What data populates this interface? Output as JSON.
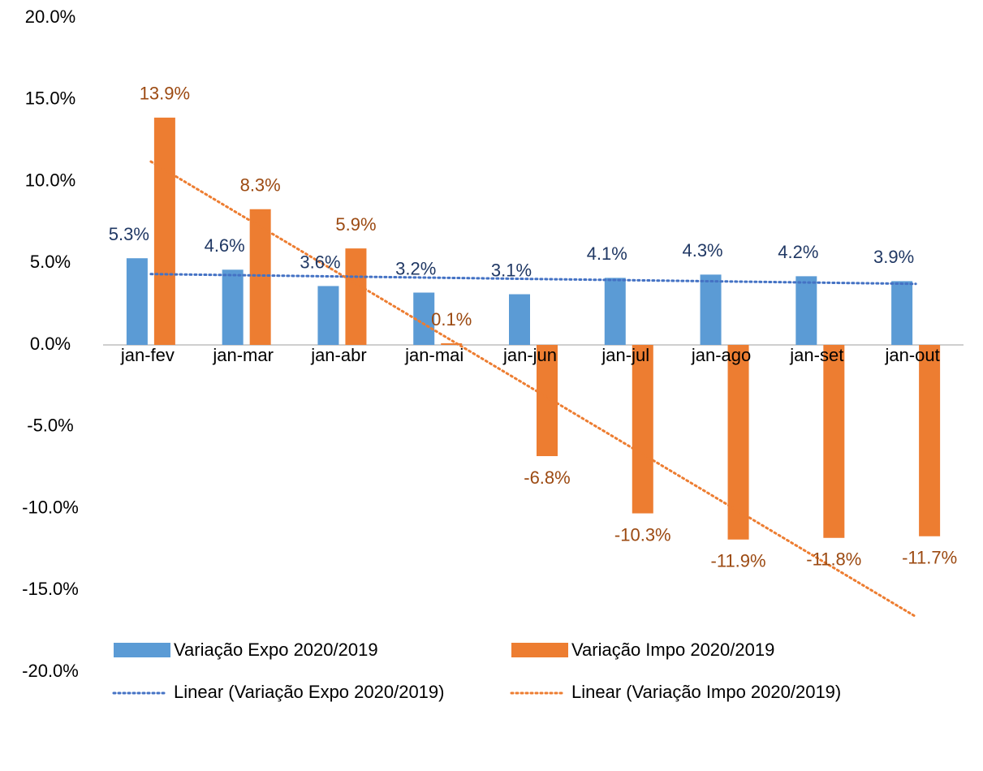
{
  "chart_data": {
    "type": "bar",
    "categories": [
      "jan-fev",
      "jan-mar",
      "jan-abr",
      "jan-mai",
      "jan-jun",
      "jan-jul",
      "jan-ago",
      "jan-set",
      "jan-out"
    ],
    "series": [
      {
        "name": "Variação Expo 2020/2019",
        "color": "#5b9bd5",
        "label_color": "#203864",
        "values": [
          5.3,
          4.6,
          3.6,
          3.2,
          3.1,
          4.1,
          4.3,
          4.2,
          3.9
        ],
        "value_labels": [
          "5.3%",
          "4.6%",
          "3.6%",
          "3.2%",
          "3.1%",
          "4.1%",
          "4.3%",
          "4.2%",
          "3.9%"
        ],
        "trendline": {
          "name": "Linear (Variação Expo 2020/2019)",
          "color": "#4472c4"
        }
      },
      {
        "name": "Variação Impo 2020/2019",
        "color": "#ed7d31",
        "label_color": "#9c4a12",
        "values": [
          13.9,
          8.3,
          5.9,
          0.1,
          -6.8,
          -10.3,
          -11.9,
          -11.8,
          -11.7
        ],
        "value_labels": [
          "13.9%",
          "8.3%",
          "5.9%",
          "0.1%",
          "-6.8%",
          "-10.3%",
          "-11.9%",
          "-11.8%",
          "-11.7%"
        ],
        "trendline": {
          "name": "Linear (Variação Impo 2020/2019)",
          "color": "#ed7d31"
        }
      }
    ],
    "ylim": [
      -20,
      20
    ],
    "yticks": [
      {
        "value": -20,
        "label": "-20.0%"
      },
      {
        "value": -15,
        "label": "-15.0%"
      },
      {
        "value": -10,
        "label": "-10.0%"
      },
      {
        "value": -5,
        "label": "-5.0%"
      },
      {
        "value": 0,
        "label": "0.0%"
      },
      {
        "value": 5,
        "label": "5.0%"
      },
      {
        "value": 10,
        "label": "10.0%"
      },
      {
        "value": 15,
        "label": "15.0%"
      },
      {
        "value": 20,
        "label": "20.0%"
      }
    ],
    "grid": false,
    "legend": "bottom"
  }
}
